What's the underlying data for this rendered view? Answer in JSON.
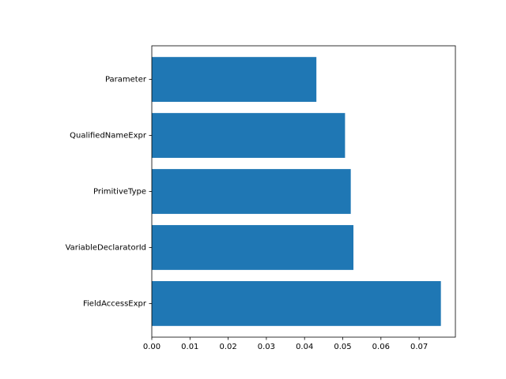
{
  "chart_data": {
    "type": "bar",
    "orientation": "horizontal",
    "categories": [
      "Parameter",
      "QualifiedNameExpr",
      "PrimitiveType",
      "VariableDeclaratorId",
      "FieldAccessExpr"
    ],
    "values": [
      0.0431,
      0.0506,
      0.0521,
      0.0528,
      0.0757
    ],
    "xlim": [
      0,
      0.0795
    ],
    "xticks": [
      "0.00",
      "0.01",
      "0.02",
      "0.03",
      "0.04",
      "0.05",
      "0.06",
      "0.07"
    ],
    "xtick_values": [
      0,
      0.01,
      0.02,
      0.03,
      0.04,
      0.05,
      0.06,
      0.07
    ],
    "title": "",
    "xlabel": "",
    "ylabel": "",
    "grid": false,
    "bar_color": "#1f77b4"
  }
}
